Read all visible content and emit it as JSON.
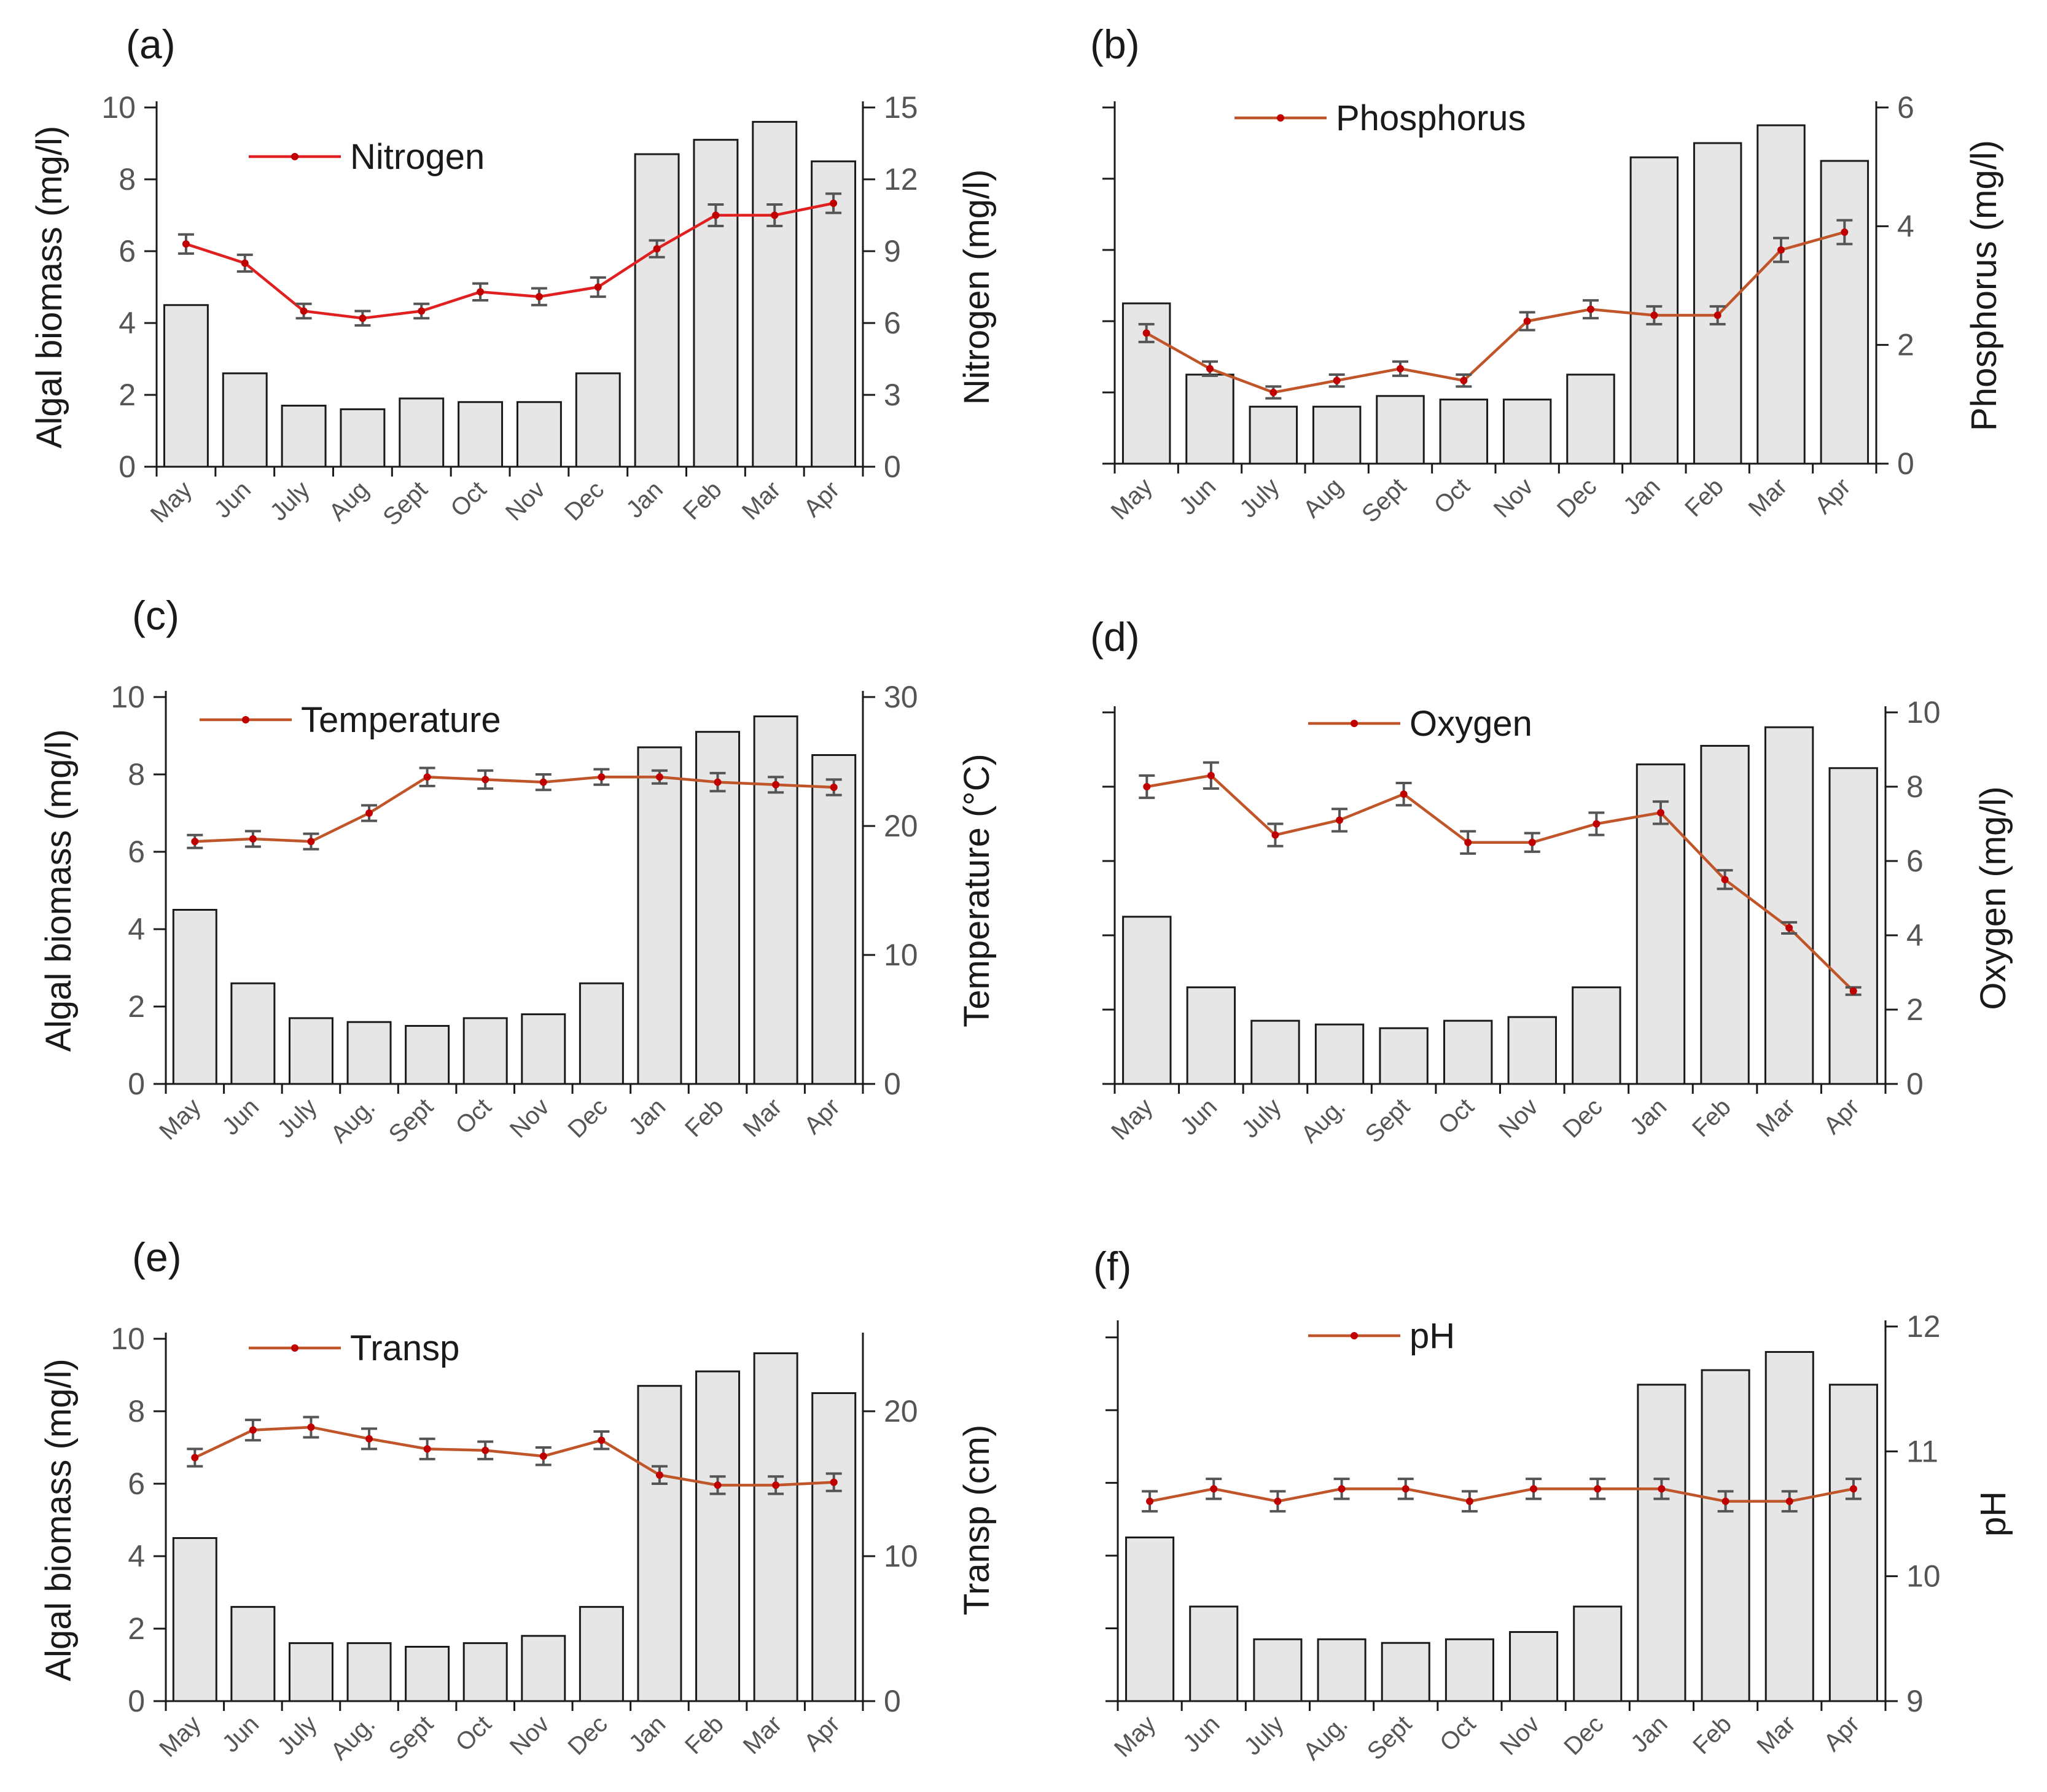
{
  "figure": {
    "colors": {
      "bar_fill": "#e6e6e6",
      "bar_stroke": "#1a1a1a",
      "axis": "#1a1a1a",
      "error_bar": "#555555",
      "marker": "#c00000",
      "line_nitrogen": "#e02020",
      "line_other": "#c0552a"
    }
  },
  "chart_data": [
    {
      "panel": "(a)",
      "type": "bar",
      "categories": [
        "May",
        "Jun",
        "July",
        "Aug",
        "Sept",
        "Oct",
        "Nov",
        "Dec",
        "Jan",
        "Feb",
        "Mar",
        "Apr"
      ],
      "series": [
        {
          "name": "Algal biomass",
          "axis": "left",
          "kind": "bar",
          "values": [
            4.5,
            2.6,
            1.7,
            1.6,
            1.9,
            1.8,
            1.8,
            2.6,
            8.7,
            9.1,
            9.6,
            8.5
          ]
        },
        {
          "name": "Nitrogen",
          "axis": "right",
          "kind": "line",
          "values": [
            9.3,
            8.5,
            6.5,
            6.2,
            6.5,
            7.3,
            7.1,
            7.5,
            9.1,
            10.5,
            10.5,
            11.0
          ],
          "errors": [
            0.4,
            0.35,
            0.3,
            0.3,
            0.3,
            0.35,
            0.35,
            0.4,
            0.35,
            0.45,
            0.45,
            0.4
          ]
        }
      ],
      "left_axis": {
        "label": "Algal biomass (mg/l)",
        "ylim": [
          0,
          10
        ],
        "ticks": [
          0,
          2,
          4,
          6,
          8,
          10
        ],
        "tick_labels": [
          "0",
          "2",
          "4",
          "6",
          "8",
          "10"
        ]
      },
      "right_axis": {
        "label": "Nitrogen (mg/l)",
        "ylim": [
          0,
          15
        ],
        "ticks": [
          0,
          3,
          6,
          9,
          12,
          15
        ],
        "tick_labels": [
          "0",
          "3",
          "6",
          "9",
          "12",
          "15"
        ]
      },
      "legend": "Nitrogen",
      "legend_position": "top-left"
    },
    {
      "panel": "(b)",
      "type": "bar",
      "categories": [
        "May",
        "Jun",
        "July",
        "Aug",
        "Sept",
        "Oct",
        "Nov",
        "Dec",
        "Jan",
        "Feb",
        "Mar",
        "Apr"
      ],
      "series": [
        {
          "name": "Algal biomass",
          "axis": "left",
          "kind": "bar",
          "values": [
            4.5,
            2.5,
            1.6,
            1.6,
            1.9,
            1.8,
            1.8,
            2.5,
            8.6,
            9.0,
            9.5,
            8.5
          ]
        },
        {
          "name": "Phosphorus",
          "axis": "right",
          "kind": "line",
          "values": [
            2.2,
            1.6,
            1.2,
            1.4,
            1.6,
            1.4,
            2.4,
            2.6,
            2.5,
            2.5,
            3.6,
            3.9
          ],
          "errors": [
            0.15,
            0.12,
            0.1,
            0.1,
            0.12,
            0.1,
            0.15,
            0.15,
            0.15,
            0.15,
            0.2,
            0.2
          ]
        }
      ],
      "left_axis": {
        "label": "",
        "ylim": [
          0,
          10
        ],
        "ticks": [
          0,
          2,
          4,
          6,
          8,
          10
        ],
        "tick_labels": [
          "",
          "",
          "",
          "",
          "",
          ""
        ]
      },
      "right_axis": {
        "label": "Phosphorus (mg/l)",
        "ylim": [
          0,
          6
        ],
        "ticks": [
          0,
          2,
          4,
          6
        ],
        "tick_labels": [
          "0",
          "2",
          "4",
          "6"
        ]
      },
      "legend": "Phosphorus",
      "legend_position": "top-left"
    },
    {
      "panel": "(c)",
      "type": "bar",
      "categories": [
        "May",
        "Jun",
        "July",
        "Aug.",
        "Sept",
        "Oct",
        "Nov",
        "Dec",
        "Jan",
        "Feb",
        "Mar",
        "Apr"
      ],
      "series": [
        {
          "name": "Algal biomass",
          "axis": "left",
          "kind": "bar",
          "values": [
            4.5,
            2.6,
            1.7,
            1.6,
            1.5,
            1.7,
            1.8,
            2.6,
            8.7,
            9.1,
            9.5,
            8.5
          ]
        },
        {
          "name": "Temperature",
          "axis": "right",
          "kind": "line",
          "values": [
            18.8,
            19.0,
            18.8,
            21.0,
            23.8,
            23.6,
            23.4,
            23.8,
            23.8,
            23.4,
            23.2,
            23.0
          ],
          "errors": [
            0.5,
            0.6,
            0.6,
            0.6,
            0.7,
            0.7,
            0.6,
            0.6,
            0.5,
            0.7,
            0.6,
            0.6
          ]
        }
      ],
      "left_axis": {
        "label": "Algal biomass (mg/l)",
        "ylim": [
          0,
          10
        ],
        "ticks": [
          0,
          2,
          4,
          6,
          8,
          10
        ],
        "tick_labels": [
          "0",
          "2",
          "4",
          "6",
          "8",
          "10"
        ]
      },
      "right_axis": {
        "label": "Temperature (°C)",
        "ylim": [
          0,
          30
        ],
        "ticks": [
          0,
          10,
          20,
          30
        ],
        "tick_labels": [
          "0",
          "10",
          "20",
          "30"
        ]
      },
      "legend": "Temperature",
      "legend_position": "top-left"
    },
    {
      "panel": "(d)",
      "type": "bar",
      "categories": [
        "May",
        "Jun",
        "July",
        "Aug.",
        "Sept",
        "Oct",
        "Nov",
        "Dec",
        "Jan",
        "Feb",
        "Mar",
        "Apr"
      ],
      "series": [
        {
          "name": "Algal biomass",
          "axis": "left",
          "kind": "bar",
          "values": [
            4.5,
            2.6,
            1.7,
            1.6,
            1.5,
            1.7,
            1.8,
            2.6,
            8.6,
            9.1,
            9.6,
            8.5
          ]
        },
        {
          "name": "Oxygen",
          "axis": "right",
          "kind": "line",
          "values": [
            8.0,
            8.3,
            6.7,
            7.1,
            7.8,
            6.5,
            6.5,
            7.0,
            7.3,
            5.5,
            4.2,
            2.5
          ],
          "errors": [
            0.3,
            0.35,
            0.3,
            0.3,
            0.3,
            0.3,
            0.25,
            0.3,
            0.3,
            0.25,
            0.15,
            0.1
          ]
        }
      ],
      "left_axis": {
        "label": "",
        "ylim": [
          0,
          10
        ],
        "ticks": [
          0,
          2,
          4,
          6,
          8,
          10
        ],
        "tick_labels": [
          "",
          "",
          "",
          "",
          "",
          ""
        ]
      },
      "right_axis": {
        "label": "Oxygen (mg/l)",
        "ylim": [
          0,
          10
        ],
        "ticks": [
          0,
          2,
          4,
          6,
          8,
          10
        ],
        "tick_labels": [
          "0",
          "2",
          "4",
          "6",
          "8",
          "10"
        ]
      },
      "legend": "Oxygen",
      "legend_position": "top-left"
    },
    {
      "panel": "(e)",
      "type": "bar",
      "categories": [
        "May",
        "Jun",
        "July",
        "Aug.",
        "Sept",
        "Oct",
        "Nov",
        "Dec",
        "Jan",
        "Feb",
        "Mar",
        "Apr"
      ],
      "series": [
        {
          "name": "Algal biomass",
          "axis": "left",
          "kind": "bar",
          "values": [
            4.5,
            2.6,
            1.6,
            1.6,
            1.5,
            1.6,
            1.8,
            2.6,
            8.7,
            9.1,
            9.6,
            8.5
          ]
        },
        {
          "name": "Transp",
          "axis": "right",
          "kind": "line",
          "values": [
            16.8,
            18.7,
            18.9,
            18.1,
            17.4,
            17.3,
            16.9,
            18.0,
            15.6,
            14.9,
            14.9,
            15.1
          ],
          "errors": [
            0.6,
            0.7,
            0.7,
            0.7,
            0.7,
            0.6,
            0.6,
            0.6,
            0.6,
            0.6,
            0.6,
            0.6
          ]
        }
      ],
      "left_axis": {
        "label": "Algal biomass (mg/l)",
        "ylim": [
          0,
          10
        ],
        "ticks": [
          0,
          2,
          4,
          6,
          8,
          10
        ],
        "tick_labels": [
          "0",
          "2",
          "4",
          "6",
          "8",
          "10"
        ]
      },
      "right_axis": {
        "label": "Transp (cm)",
        "ylim": [
          0,
          25
        ],
        "ticks": [
          0,
          10,
          20
        ],
        "tick_labels": [
          "0",
          "10",
          "20"
        ]
      },
      "legend": "Transp",
      "legend_position": "top-left"
    },
    {
      "panel": "(f)",
      "type": "bar",
      "categories": [
        "May",
        "Jun",
        "July",
        "Aug.",
        "Sept",
        "Oct",
        "Nov",
        "Dec",
        "Jan",
        "Feb",
        "Mar",
        "Apr"
      ],
      "series": [
        {
          "name": "Algal biomass",
          "axis": "left",
          "kind": "bar",
          "values": [
            4.5,
            2.6,
            1.7,
            1.7,
            1.6,
            1.7,
            1.9,
            2.6,
            8.7,
            9.1,
            9.6,
            8.7
          ]
        },
        {
          "name": "pH",
          "axis": "right",
          "kind": "line",
          "values": [
            10.6,
            10.7,
            10.6,
            10.7,
            10.7,
            10.6,
            10.7,
            10.7,
            10.7,
            10.6,
            10.6,
            10.7
          ],
          "errors": [
            0.08,
            0.08,
            0.08,
            0.08,
            0.08,
            0.08,
            0.08,
            0.08,
            0.08,
            0.08,
            0.08,
            0.08
          ]
        }
      ],
      "left_axis": {
        "label": "",
        "ylim": [
          0,
          10.3
        ],
        "ticks": [
          0,
          2,
          4,
          6,
          8,
          10
        ],
        "tick_labels": [
          "",
          "",
          "",
          "",
          "",
          ""
        ]
      },
      "right_axis": {
        "label": "pH",
        "ylim": [
          9,
          12
        ],
        "ticks": [
          9,
          10,
          11,
          12
        ],
        "tick_labels": [
          "9",
          "10",
          "11",
          "12"
        ]
      },
      "legend": "pH",
      "legend_position": "top-left"
    }
  ]
}
